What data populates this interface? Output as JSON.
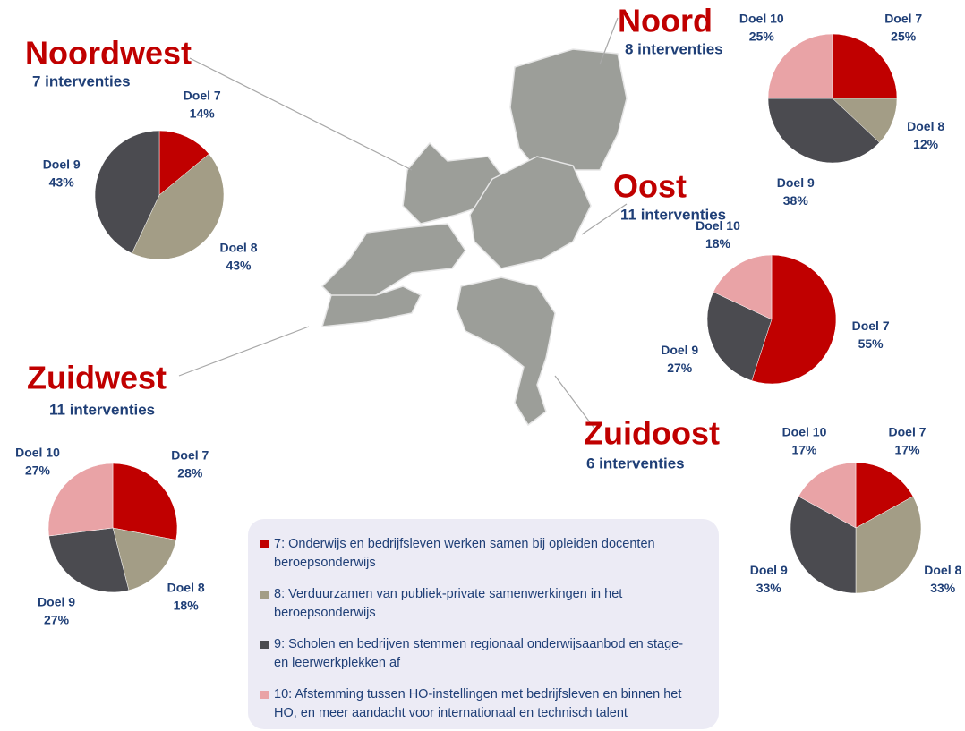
{
  "chart_data": [
    {
      "type": "pie",
      "title": "Noordwest",
      "subtitle": "7 interventies",
      "categories": [
        "Doel 7",
        "Doel 8",
        "Doel 9"
      ],
      "values": [
        14,
        43,
        43
      ],
      "value_labels": [
        "14%",
        "43%",
        "43%"
      ],
      "colors": [
        "#c00000",
        "#a39d86",
        "#4b4b50"
      ]
    },
    {
      "type": "pie",
      "title": "Noord",
      "subtitle": "8 interventies",
      "categories": [
        "Doel 7",
        "Doel 8",
        "Doel 9",
        "Doel 10"
      ],
      "values": [
        25,
        12,
        38,
        25
      ],
      "value_labels": [
        "25%",
        "12%",
        "38%",
        "25%"
      ],
      "colors": [
        "#c00000",
        "#a39d86",
        "#4b4b50",
        "#e9a3a6"
      ]
    },
    {
      "type": "pie",
      "title": "Oost",
      "subtitle": "11 interventies",
      "categories": [
        "Doel 7",
        "Doel 9",
        "Doel 10"
      ],
      "values": [
        55,
        27,
        18
      ],
      "value_labels": [
        "55%",
        "27%",
        "18%"
      ],
      "colors": [
        "#c00000",
        "#4b4b50",
        "#e9a3a6"
      ]
    },
    {
      "type": "pie",
      "title": "Zuidwest",
      "subtitle": "11 interventies",
      "categories": [
        "Doel 7",
        "Doel 8",
        "Doel 9",
        "Doel 10"
      ],
      "values": [
        28,
        18,
        27,
        27
      ],
      "value_labels": [
        "28%",
        "18%",
        "27%",
        "27%"
      ],
      "colors": [
        "#c00000",
        "#a39d86",
        "#4b4b50",
        "#e9a3a6"
      ]
    },
    {
      "type": "pie",
      "title": "Zuidoost",
      "subtitle": "6 interventies",
      "categories": [
        "Doel 7",
        "Doel 8",
        "Doel 9",
        "Doel 10"
      ],
      "values": [
        17,
        33,
        33,
        17
      ],
      "value_labels": [
        "17%",
        "33%",
        "33%",
        "17%"
      ],
      "colors": [
        "#c00000",
        "#a39d86",
        "#4b4b50",
        "#e9a3a6"
      ]
    }
  ],
  "legend": [
    {
      "label": "7: Onderwijs en bedrijfsleven werken samen bij opleiden docenten beroepsonderwijs",
      "color": "#c00000"
    },
    {
      "label": "8: Verduurzamen van publiek-private samenwerkingen in het beroepsonderwijs",
      "color": "#a39d86"
    },
    {
      "label": "9: Scholen en bedrijven stemmen regionaal onderwijsaanbod en stage- en leerwerkplekken af",
      "color": "#4b4b50"
    },
    {
      "label": "10: Afstemming tussen HO-instellingen met bedrijfsleven en binnen het HO, en meer aandacht voor internationaal en technisch talent",
      "color": "#e9a3a6"
    }
  ]
}
